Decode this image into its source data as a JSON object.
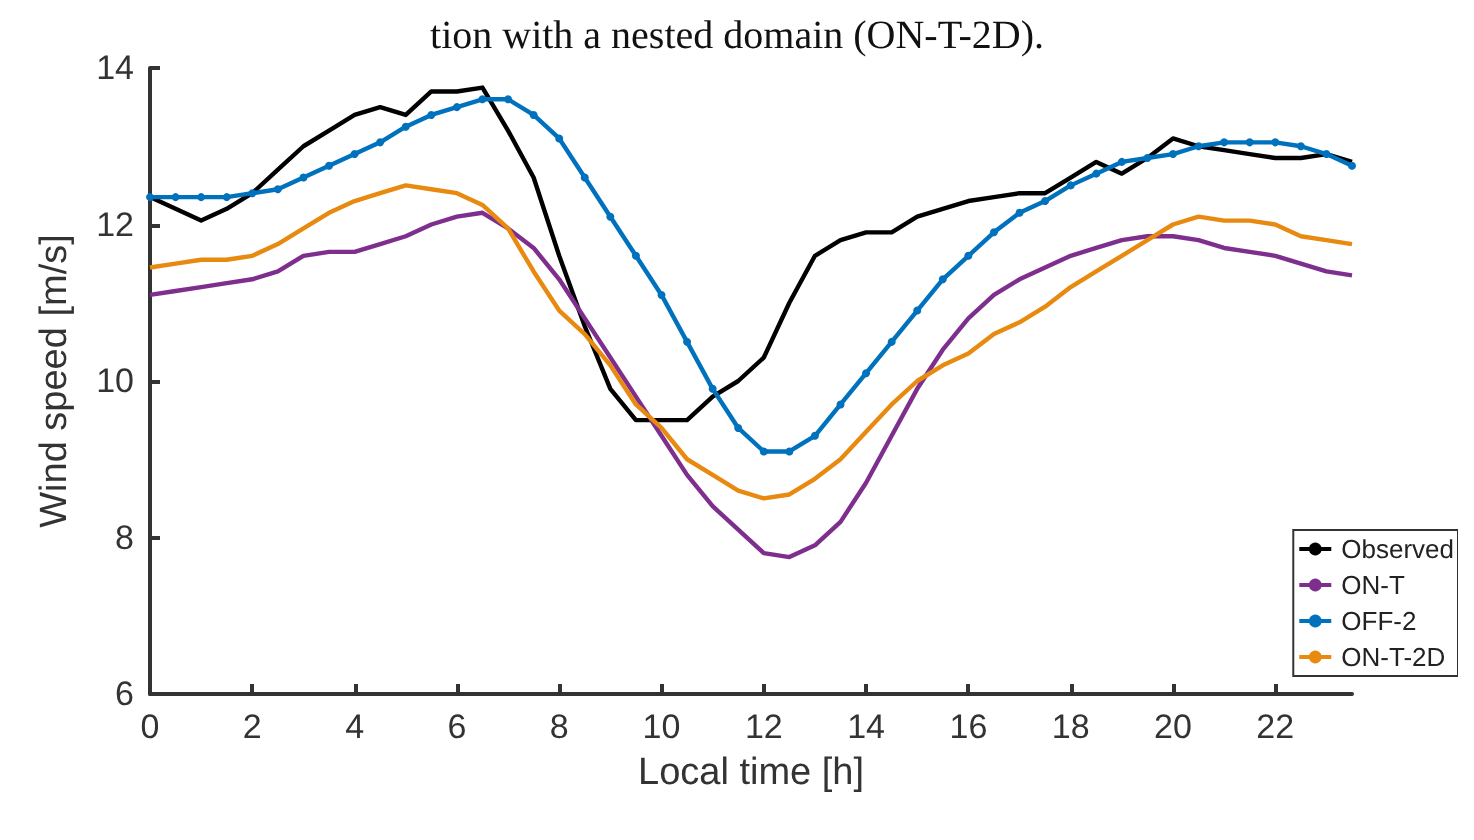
{
  "chart_data": {
    "type": "line",
    "xlabel": "Local time [h]",
    "ylabel": "Wind speed [m/s]",
    "annotations": [
      "tion with a nested domain (ON-T-2D)."
    ],
    "x": [
      0,
      0.5,
      1,
      1.5,
      2,
      2.5,
      3,
      3.5,
      4,
      4.5,
      5,
      5.5,
      6,
      6.5,
      7,
      7.5,
      8,
      8.5,
      9,
      9.5,
      10,
      10.5,
      11,
      11.5,
      12,
      12.5,
      13,
      13.5,
      14,
      14.5,
      15,
      15.5,
      16,
      16.5,
      17,
      17.5,
      18,
      18.5,
      19,
      19.5,
      20,
      20.5,
      21,
      21.5,
      22,
      22.5,
      23,
      23.5
    ],
    "series": [
      {
        "name": "Observed",
        "color": "#000000",
        "marker": "none",
        "values": [
          12.35,
          12.2,
          12.05,
          12.2,
          12.4,
          12.7,
          13.0,
          13.2,
          13.4,
          13.5,
          13.4,
          13.7,
          13.7,
          13.75,
          13.2,
          12.6,
          11.6,
          10.7,
          9.9,
          9.5,
          9.5,
          9.5,
          9.8,
          10.0,
          10.3,
          11.0,
          11.6,
          11.8,
          11.9,
          11.9,
          12.1,
          12.2,
          12.3,
          12.35,
          12.4,
          12.4,
          12.6,
          12.8,
          12.65,
          12.85,
          13.1,
          13.0,
          12.95,
          12.9,
          12.85,
          12.85,
          12.9,
          12.8
        ]
      },
      {
        "name": "ON-T",
        "color": "#7e2f8e",
        "marker": "none",
        "values": [
          11.1,
          11.15,
          11.2,
          11.25,
          11.3,
          11.4,
          11.6,
          11.65,
          11.65,
          11.75,
          11.85,
          12.0,
          12.1,
          12.15,
          11.95,
          11.7,
          11.3,
          10.8,
          10.3,
          9.8,
          9.3,
          8.8,
          8.4,
          8.1,
          7.8,
          7.75,
          7.9,
          8.2,
          8.7,
          9.3,
          9.9,
          10.4,
          10.8,
          11.1,
          11.3,
          11.45,
          11.6,
          11.7,
          11.8,
          11.85,
          11.85,
          11.8,
          11.7,
          11.65,
          11.6,
          11.5,
          11.4,
          11.35
        ]
      },
      {
        "name": "OFF-2",
        "color": "#0072bd",
        "marker": "circle",
        "values": [
          12.35,
          12.35,
          12.35,
          12.35,
          12.4,
          12.45,
          12.6,
          12.75,
          12.9,
          13.05,
          13.25,
          13.4,
          13.5,
          13.6,
          13.6,
          13.4,
          13.1,
          12.6,
          12.1,
          11.6,
          11.1,
          10.5,
          9.9,
          9.4,
          9.1,
          9.1,
          9.3,
          9.7,
          10.1,
          10.5,
          10.9,
          11.3,
          11.6,
          11.9,
          12.15,
          12.3,
          12.5,
          12.65,
          12.8,
          12.85,
          12.9,
          13.0,
          13.05,
          13.05,
          13.05,
          13.0,
          12.9,
          12.75
        ]
      },
      {
        "name": "ON-T-2D",
        "color": "#e88a10",
        "marker": "none",
        "values": [
          11.45,
          11.5,
          11.55,
          11.55,
          11.6,
          11.75,
          11.95,
          12.15,
          12.3,
          12.4,
          12.5,
          12.45,
          12.4,
          12.25,
          11.95,
          11.4,
          10.9,
          10.6,
          10.2,
          9.7,
          9.4,
          9.0,
          8.8,
          8.6,
          8.5,
          8.55,
          8.75,
          9.0,
          9.35,
          9.7,
          10.0,
          10.2,
          10.35,
          10.6,
          10.75,
          10.95,
          11.2,
          11.4,
          11.6,
          11.8,
          12.0,
          12.1,
          12.05,
          12.05,
          12.0,
          11.85,
          11.8,
          11.75
        ]
      }
    ],
    "xlim": [
      0,
      23.5
    ],
    "xticks": [
      0,
      2,
      4,
      6,
      8,
      10,
      12,
      14,
      16,
      18,
      20,
      22
    ],
    "ylim": [
      6,
      14
    ],
    "yticks": [
      6,
      8,
      10,
      12,
      14
    ],
    "legend": "bottom right",
    "line_style": "solid"
  }
}
